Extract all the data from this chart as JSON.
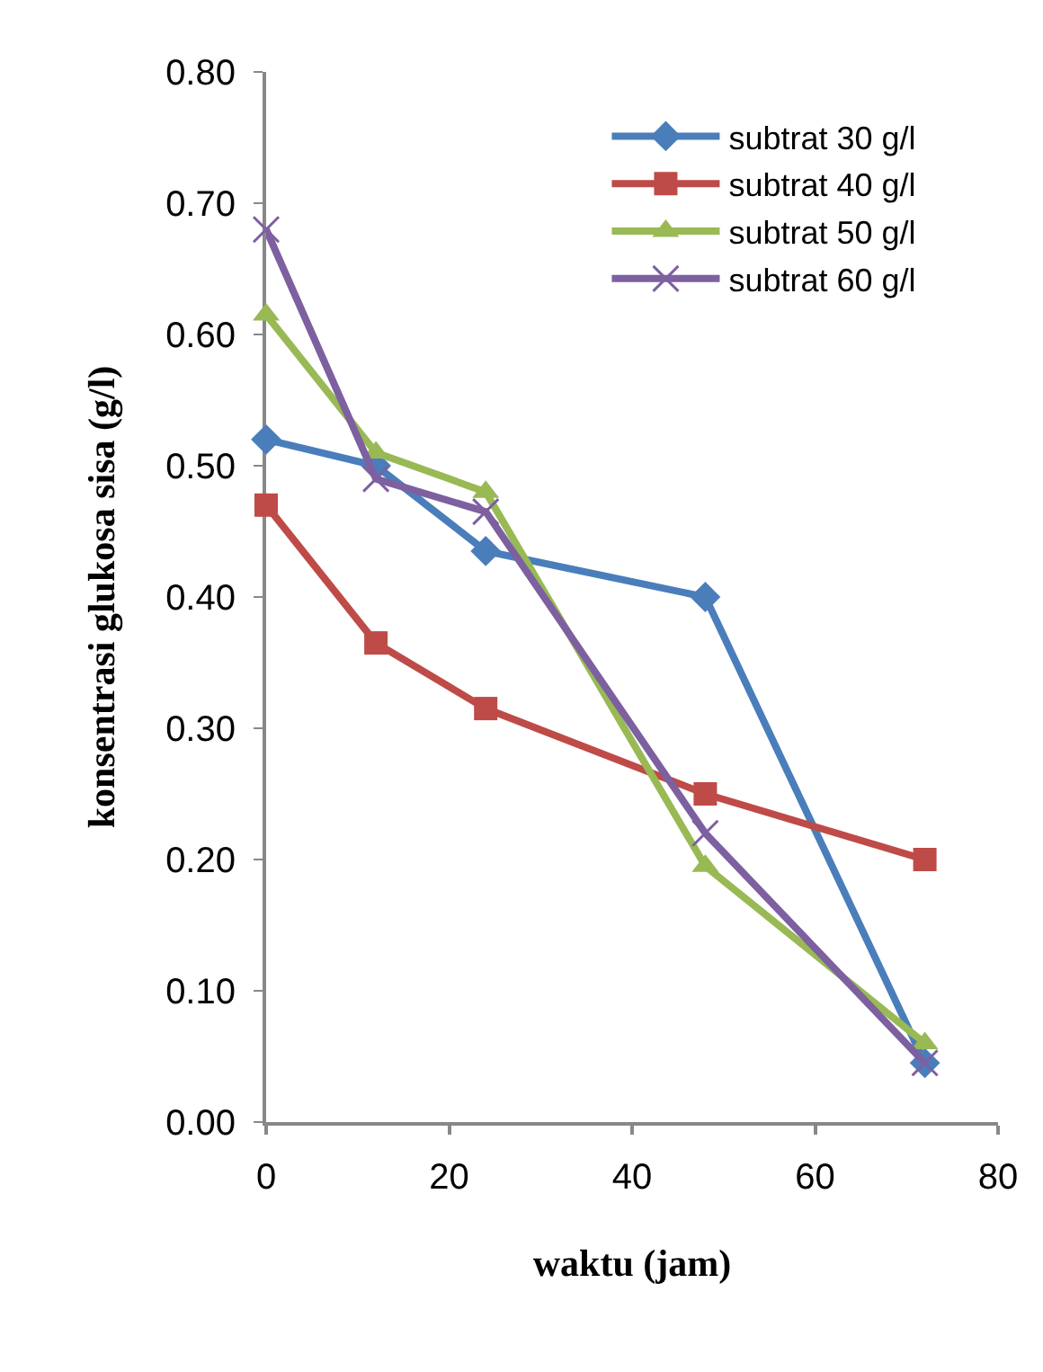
{
  "chart_data": {
    "type": "line",
    "xlabel": "waktu (jam)",
    "ylabel": "konsentrasi glukosa sisa (g/l)",
    "x": [
      0,
      12,
      24,
      48,
      72
    ],
    "series": [
      {
        "name": "subtrat 30 g/l",
        "color": "#4a7ebb",
        "marker": "diamond",
        "values": [
          0.52,
          0.5,
          0.435,
          0.4,
          0.045
        ]
      },
      {
        "name": "subtrat 40 g/l",
        "color": "#be4b48",
        "marker": "square",
        "values": [
          0.47,
          0.365,
          0.315,
          0.25,
          0.2
        ]
      },
      {
        "name": "subtrat 50 g/l",
        "color": "#98b954",
        "marker": "triangle",
        "values": [
          0.615,
          0.51,
          0.48,
          0.195,
          0.06
        ]
      },
      {
        "name": "subtrat 60 g/l",
        "color": "#7d60a0",
        "marker": "cross",
        "values": [
          0.68,
          0.49,
          0.465,
          0.22,
          0.045
        ]
      }
    ],
    "xlim": [
      0,
      80
    ],
    "xticks": [
      0,
      20,
      40,
      60,
      80
    ],
    "ylim": [
      0,
      0.8
    ],
    "yticks": [
      {
        "value": 0,
        "label": "0.00"
      },
      {
        "value": 0.1,
        "label": "0.10"
      },
      {
        "value": 0.2,
        "label": "0.20"
      },
      {
        "value": 0.3,
        "label": "0.30"
      },
      {
        "value": 0.4,
        "label": "0.40"
      },
      {
        "value": 0.5,
        "label": "0.50"
      },
      {
        "value": 0.6,
        "label": "0.60"
      },
      {
        "value": 0.7,
        "label": "0.70"
      },
      {
        "value": 0.8,
        "label": "0.80"
      }
    ],
    "grid": false,
    "legend": "top right",
    "line_style": "solid"
  }
}
